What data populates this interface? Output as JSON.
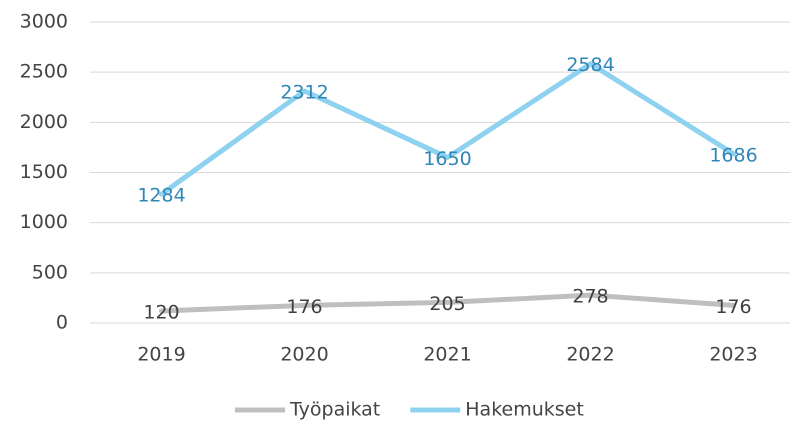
{
  "chart_data": {
    "type": "line",
    "categories": [
      "2019",
      "2020",
      "2021",
      "2022",
      "2023"
    ],
    "series": [
      {
        "name": "Työpaikat",
        "color": "#bfbfbf",
        "label_color": "#404040",
        "values": [
          120,
          176,
          205,
          278,
          176
        ]
      },
      {
        "name": "Hakemukset",
        "color": "#8ed2f0",
        "label_color": "#2f86b8",
        "values": [
          1284,
          2312,
          1650,
          2584,
          1686
        ]
      }
    ],
    "ylim": [
      0,
      3000
    ],
    "yticks": [
      0,
      500,
      1000,
      1500,
      2000,
      2500,
      3000
    ],
    "grid": true,
    "data_labels": true,
    "legend": "bottom"
  }
}
